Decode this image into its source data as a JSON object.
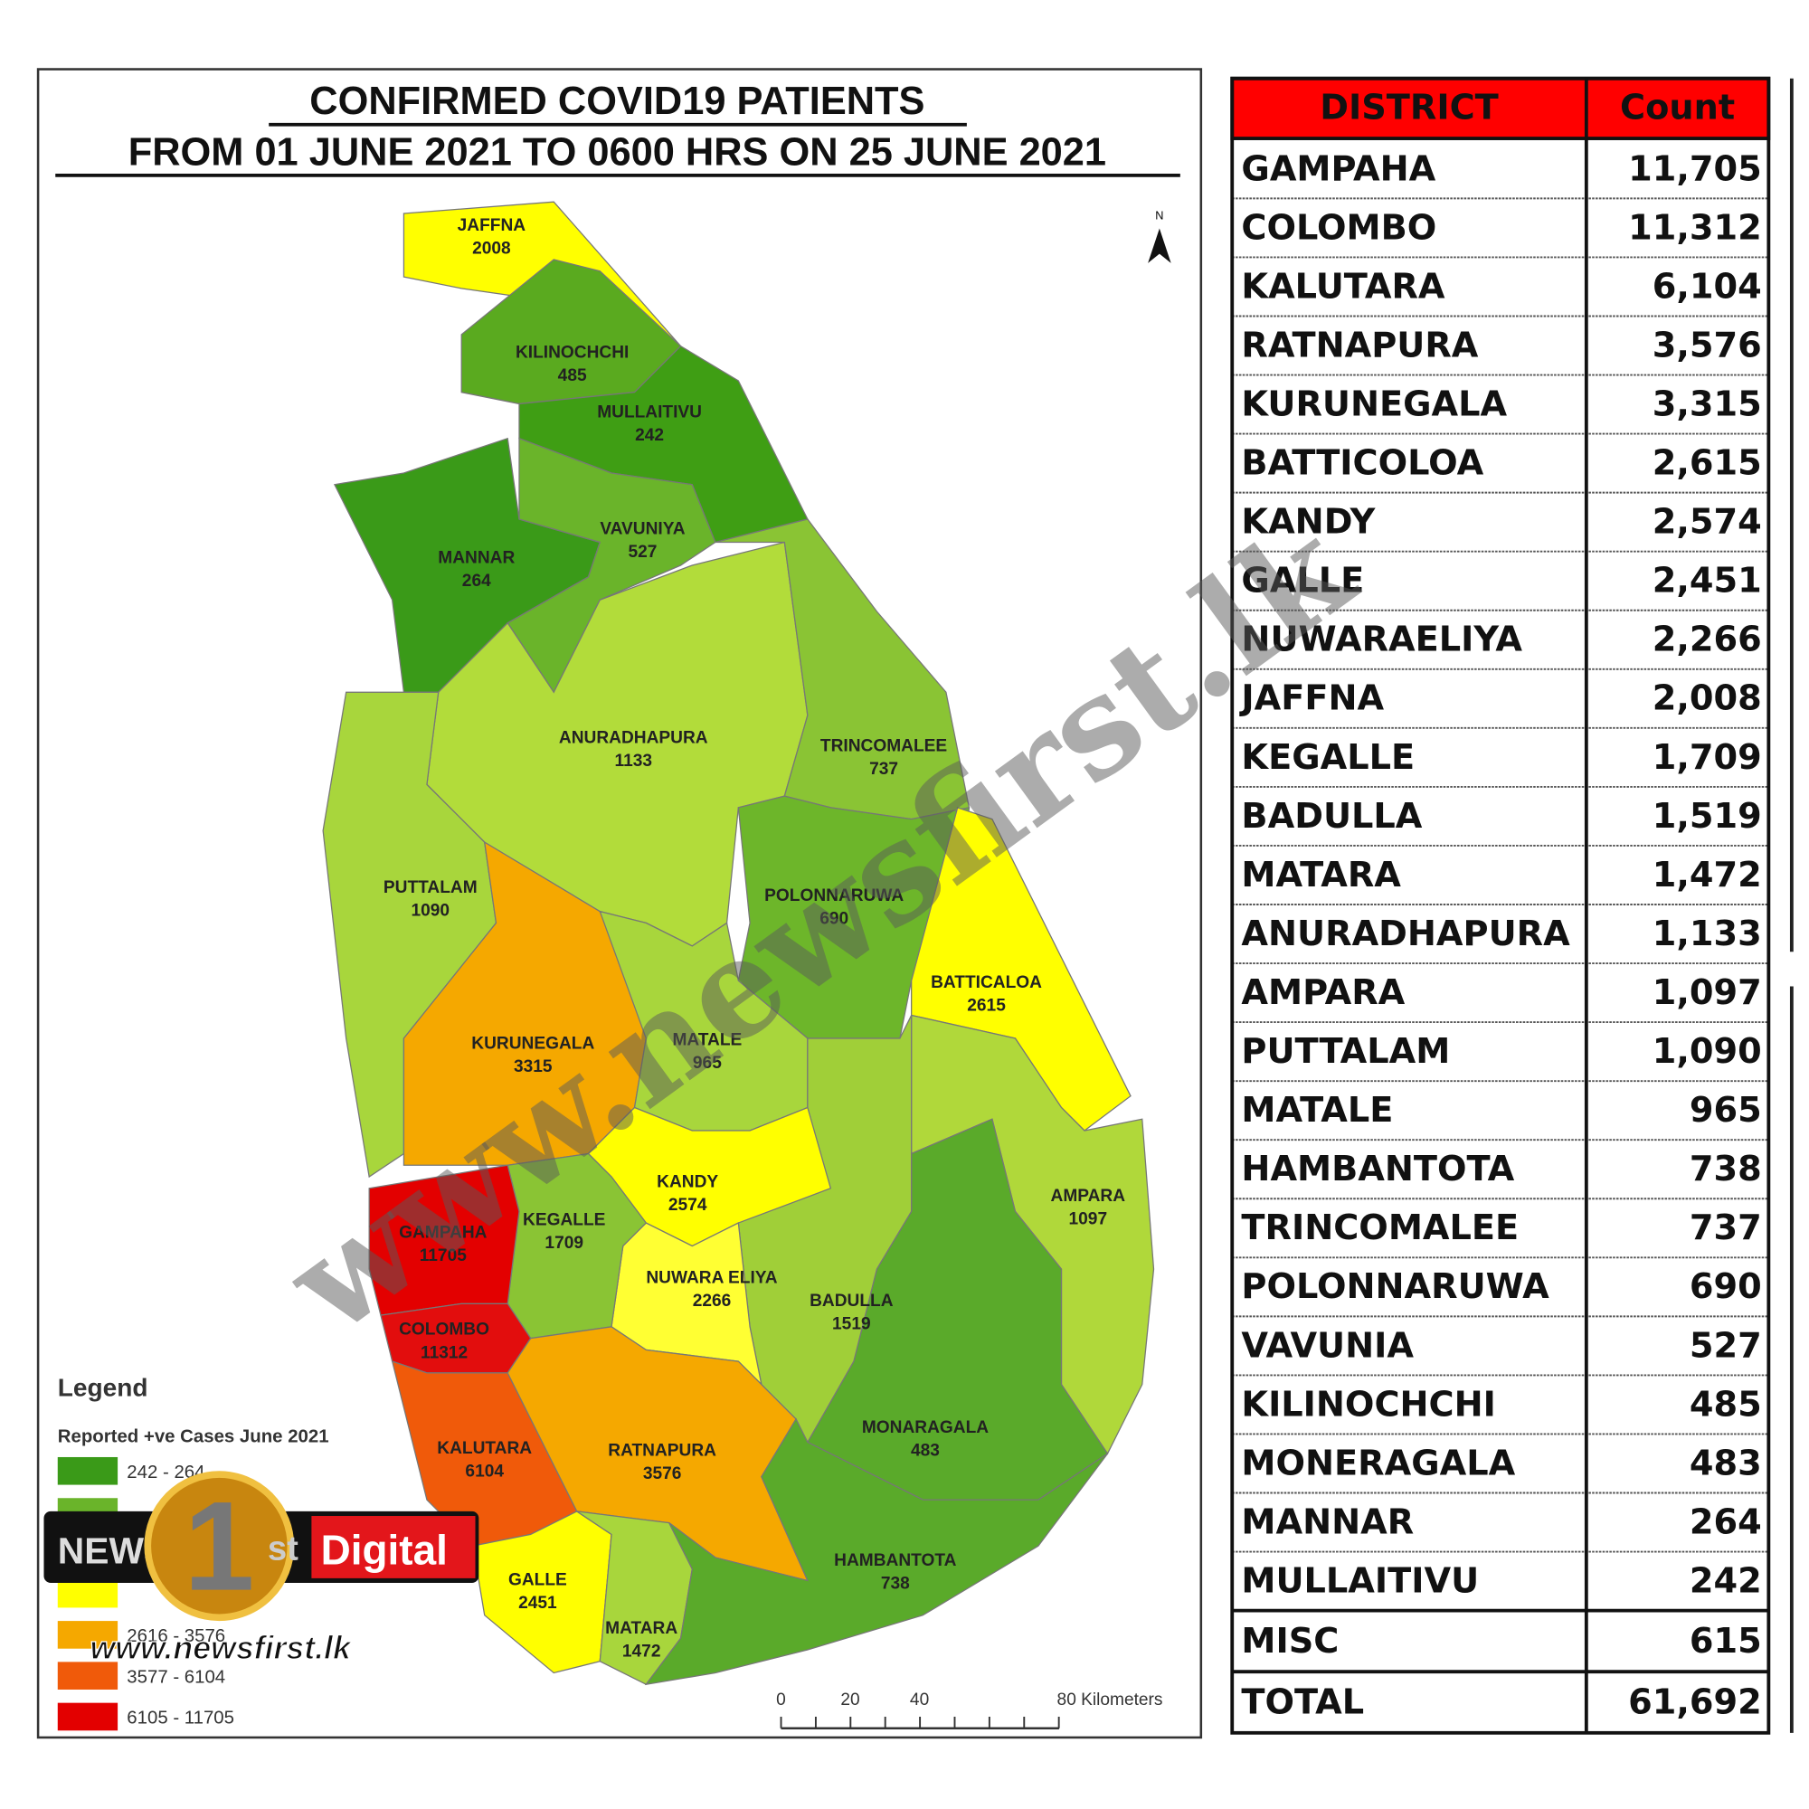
{
  "map": {
    "title_lines": [
      "CONFIRMED COVID19 PATIENTS",
      "FROM 01 JUNE 2021 TO 0600 HRS ON 25 JUNE  2021"
    ],
    "north": "N",
    "districts": [
      {
        "name": "JAFFNA",
        "count": "2008",
        "color": "#ffff00"
      },
      {
        "name": "KILINOCHCHI",
        "count": "485",
        "color": "#5aaa1f"
      },
      {
        "name": "MULLAITIVU",
        "count": "242",
        "color": "#3f9e14"
      },
      {
        "name": "MANNAR",
        "count": "264",
        "color": "#3a9a18"
      },
      {
        "name": "VAVUNIYA",
        "count": "527",
        "color": "#6ab42a"
      },
      {
        "name": "ANURADHAPURA",
        "count": "1133",
        "color": "#b2dc3a"
      },
      {
        "name": "TRINCOMALEE",
        "count": "737",
        "color": "#8ac434"
      },
      {
        "name": "PUTTALAM",
        "count": "1090",
        "color": "#a8d63c"
      },
      {
        "name": "KURUNEGALA",
        "count": "3315",
        "color": "#f5a800"
      },
      {
        "name": "POLONNARUWA",
        "count": "690",
        "color": "#6db62a"
      },
      {
        "name": "MATALE",
        "count": "965",
        "color": "#a8d63c"
      },
      {
        "name": "BATTICALOA",
        "count": "2615",
        "color": "#ffff00"
      },
      {
        "name": "AMPARA",
        "count": "1097",
        "color": "#b0d83a"
      },
      {
        "name": "MONARAGALA",
        "count": "483",
        "color": "#5aaa2a"
      },
      {
        "name": "BADULLA",
        "count": "1519",
        "color": "#a0cf38"
      },
      {
        "name": "KANDY",
        "count": "2574",
        "color": "#ffff00"
      },
      {
        "name": "NUWARA ELIYA",
        "count": "2266",
        "color": "#ffff33"
      },
      {
        "name": "KEGALLE",
        "count": "1709",
        "color": "#8ac434"
      },
      {
        "name": "GAMPAHA",
        "count": "11705",
        "color": "#e30000"
      },
      {
        "name": "COLOMBO",
        "count": "11312",
        "color": "#e20d0d"
      },
      {
        "name": "KALUTARA",
        "count": "6104",
        "color": "#f05a0a"
      },
      {
        "name": "RATNAPURA",
        "count": "3576",
        "color": "#f5a800"
      },
      {
        "name": "GALLE",
        "count": "2451",
        "color": "#ffff00"
      },
      {
        "name": "MATARA",
        "count": "1472",
        "color": "#a8d63c"
      },
      {
        "name": "HAMBANTOTA",
        "count": "738",
        "color": "#5aaa2a"
      }
    ],
    "legend": {
      "title": "Legend",
      "subtitle": "Reported +ve Cases June 2021",
      "items": [
        {
          "label": "242 - 264",
          "color": "#3a9a18"
        },
        {
          "label": null,
          "color": "#6ab42a"
        },
        {
          "label": null,
          "color": "#a8d63c"
        },
        {
          "label": null,
          "color": "#ffff00"
        },
        {
          "label": "2616 - 3576",
          "color": "#f5a800"
        },
        {
          "label": "3577 - 6104",
          "color": "#f05a0a"
        },
        {
          "label": "6105 - 11705",
          "color": "#e30000"
        }
      ]
    },
    "scale_labels": [
      "0",
      "20",
      "40",
      "80 Kilometers"
    ]
  },
  "table": {
    "header": [
      "DISTRICT",
      "Count"
    ],
    "rows": [
      [
        "GAMPAHA",
        "11,705"
      ],
      [
        "COLOMBO",
        "11,312"
      ],
      [
        "KALUTARA",
        "6,104"
      ],
      [
        "RATNAPURA",
        "3,576"
      ],
      [
        "KURUNEGALA",
        "3,315"
      ],
      [
        "BATTICOLOA",
        "2,615"
      ],
      [
        "KANDY",
        "2,574"
      ],
      [
        "GALLE",
        "2,451"
      ],
      [
        "NUWARAELIYA",
        "2,266"
      ],
      [
        "JAFFNA",
        "2,008"
      ],
      [
        "KEGALLE",
        "1,709"
      ],
      [
        "BADULLA",
        "1,519"
      ],
      [
        "MATARA",
        "1,472"
      ],
      [
        "ANURADHAPURA",
        "1,133"
      ],
      [
        "AMPARA",
        "1,097"
      ],
      [
        "PUTTALAM",
        "1,090"
      ],
      [
        "MATALE",
        "965"
      ],
      [
        "HAMBANTOTA",
        "738"
      ],
      [
        "TRINCOMALEE",
        "737"
      ],
      [
        "POLONNARUWA",
        "690"
      ],
      [
        "VAVUNIA",
        "527"
      ],
      [
        "KILINOCHCHI",
        "485"
      ],
      [
        "MONERAGALA",
        "483"
      ],
      [
        "MANNAR",
        "264"
      ],
      [
        "MULLAITIVU",
        "242"
      ]
    ],
    "misc": [
      "MISC",
      "615"
    ],
    "total": [
      "TOTAL",
      "61,692"
    ]
  },
  "watermark": "www.newsfirst.lk",
  "logo": {
    "news": "NEWS",
    "one": "1",
    "st": "st",
    "digital": "Digital",
    "url": "www.newsfirst.lk"
  }
}
